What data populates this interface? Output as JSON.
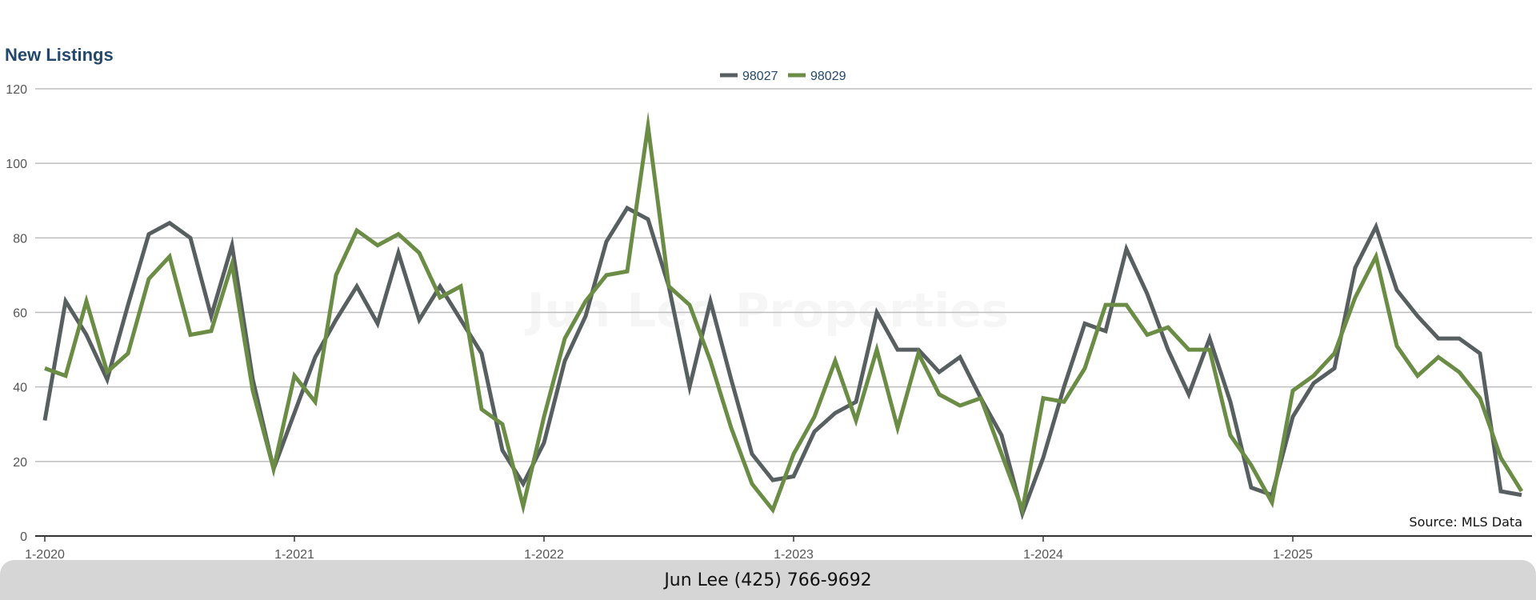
{
  "footer": {
    "contact": "Jun Lee (425) 766-9692"
  },
  "watermark": "Jun Lee Properties",
  "colors": {
    "98027": "#585f61",
    "98029": "#6a8c45",
    "title": "#24486b",
    "grid": "#bdbdbd",
    "axis": "#333333"
  },
  "chart_data": {
    "type": "line",
    "title": "New Listings",
    "source": "Source: MLS Data",
    "legend_position": "top-center",
    "grid": true,
    "ylim": [
      0,
      120
    ],
    "yticks": [
      "0",
      "20",
      "40",
      "60",
      "80",
      "100",
      "120"
    ],
    "xlim": [
      "2020-01",
      "2025-12"
    ],
    "xticks": [
      "1-2020",
      "1-2021",
      "1-2022",
      "1-2023",
      "1-2024",
      "1-2025"
    ],
    "x": [
      "2020-01",
      "2020-02",
      "2020-03",
      "2020-04",
      "2020-05",
      "2020-06",
      "2020-07",
      "2020-08",
      "2020-09",
      "2020-10",
      "2020-11",
      "2020-12",
      "2021-01",
      "2021-02",
      "2021-03",
      "2021-04",
      "2021-05",
      "2021-06",
      "2021-07",
      "2021-08",
      "2021-09",
      "2021-10",
      "2021-11",
      "2021-12",
      "2022-01",
      "2022-02",
      "2022-03",
      "2022-04",
      "2022-05",
      "2022-06",
      "2022-07",
      "2022-08",
      "2022-09",
      "2022-10",
      "2022-11",
      "2022-12",
      "2023-01",
      "2023-02",
      "2023-03",
      "2023-04",
      "2023-05",
      "2023-06",
      "2023-07",
      "2023-08",
      "2023-09",
      "2023-10",
      "2023-11",
      "2023-12",
      "2024-01",
      "2024-02",
      "2024-03",
      "2024-04",
      "2024-05",
      "2024-06",
      "2024-07",
      "2024-08",
      "2024-09",
      "2024-10",
      "2024-11",
      "2024-12",
      "2025-01",
      "2025-02",
      "2025-03",
      "2025-04",
      "2025-05",
      "2025-06",
      "2025-07",
      "2025-08",
      "2025-09",
      "2025-10",
      "2025-11",
      "2025-12"
    ],
    "series": [
      {
        "name": "98027",
        "values": [
          31,
          63,
          54,
          42,
          62,
          81,
          84,
          80,
          59,
          78,
          42,
          18,
          33,
          48,
          58,
          67,
          57,
          76,
          58,
          67,
          58,
          49,
          23,
          14,
          25,
          47,
          59,
          79,
          88,
          85,
          67,
          40,
          63,
          42,
          22,
          15,
          16,
          28,
          33,
          36,
          60,
          50,
          50,
          44,
          48,
          37,
          27,
          6,
          21,
          40,
          57,
          55,
          77,
          65,
          50,
          38,
          53,
          36,
          13,
          11,
          32,
          41,
          45,
          72,
          83,
          66,
          59,
          53,
          53,
          49,
          12,
          11
        ]
      },
      {
        "name": "98029",
        "values": [
          45,
          43,
          63,
          44,
          49,
          69,
          75,
          54,
          55,
          73,
          39,
          18,
          43,
          36,
          70,
          82,
          78,
          81,
          76,
          64,
          67,
          34,
          30,
          8,
          32,
          53,
          63,
          70,
          71,
          110,
          67,
          62,
          47,
          29,
          14,
          7,
          22,
          32,
          47,
          31,
          50,
          29,
          49,
          38,
          35,
          37,
          22,
          7,
          37,
          36,
          45,
          62,
          62,
          54,
          56,
          50,
          50,
          27,
          19,
          9,
          39,
          43,
          49,
          64,
          75,
          51,
          43,
          48,
          44,
          37,
          21,
          12
        ]
      }
    ]
  }
}
